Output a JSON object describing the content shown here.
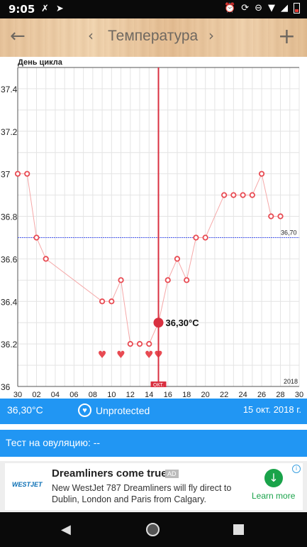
{
  "status_bar": {
    "time": "9:05",
    "left_icons": [
      "x-tools-icon",
      "send-icon"
    ],
    "right_icons": [
      "alarm-icon",
      "sync-icon",
      "dnd-icon",
      "wifi-icon",
      "signal-icon",
      "battery-low-icon"
    ]
  },
  "toolbar": {
    "back_glyph": "←",
    "prev_glyph": "‹",
    "title": "Температура",
    "next_glyph": "›",
    "add_glyph": "+"
  },
  "chart_data": {
    "type": "line",
    "title": "День цикла",
    "ylim": [
      36.0,
      37.5
    ],
    "y_ticks": [
      "37.4",
      "37.2",
      "37",
      "36.8",
      "36.6",
      "36.4",
      "36.2",
      "36"
    ],
    "x_ticks": [
      "30",
      "02",
      "04",
      "06",
      "08",
      "10",
      "12",
      "14",
      "16",
      "18",
      "20",
      "22",
      "24",
      "26",
      "28",
      "30"
    ],
    "x_days": [
      0,
      1,
      2,
      3,
      4,
      5,
      6,
      7,
      8,
      9,
      10,
      11,
      12,
      13,
      14,
      15,
      16,
      17,
      18,
      19,
      20,
      21,
      22,
      23,
      24,
      25,
      26,
      27,
      28,
      29,
      30
    ],
    "series": [
      {
        "x": [
          0,
          1,
          2,
          3,
          9,
          10,
          11,
          12,
          13,
          14,
          15,
          16,
          17,
          18,
          19,
          20,
          22,
          23,
          24,
          25,
          26,
          27,
          28
        ],
        "values": [
          37.0,
          37.0,
          36.7,
          36.6,
          36.4,
          36.4,
          36.5,
          36.2,
          36.2,
          36.2,
          36.3,
          36.5,
          36.6,
          36.5,
          36.7,
          36.7,
          36.9,
          36.9,
          36.9,
          36.9,
          37.0,
          36.8,
          36.8
        ]
      }
    ],
    "coverline": {
      "value": 36.7,
      "label": "36,70"
    },
    "current_day": {
      "x": 15,
      "value": 36.3,
      "label": "36,30°C",
      "month_tag": "ОКТ."
    },
    "heart_days": [
      9,
      11,
      14,
      15
    ],
    "year_label": "2018",
    "colors": {
      "line": "#f5a8a8",
      "marker": "#e84a52",
      "today": "#d93040",
      "coverline": "#4a5cf0"
    }
  },
  "summary": {
    "temperature": "36,30°C",
    "status": "Unprotected",
    "date": "15 окт. 2018 г."
  },
  "ovulation": {
    "label": "Тест на овуляцию: --"
  },
  "ad": {
    "logo": "WESTJET",
    "title": "Dreamliners come true.",
    "badge": "AD",
    "text": "New WestJet 787 Dreamliners will fly direct to Dublin, London and Paris from Calgary.",
    "cta": "Learn more",
    "info": "i"
  },
  "nav": {
    "back_glyph": "◀"
  }
}
